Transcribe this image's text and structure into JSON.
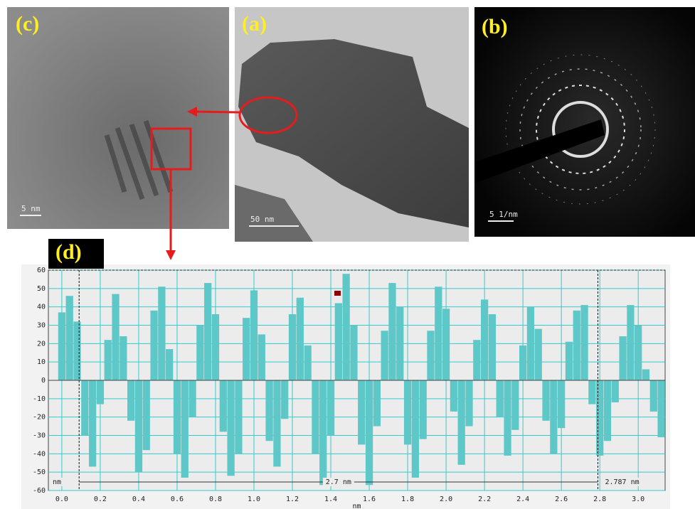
{
  "panels": [
    {
      "label": "(c)",
      "scale_bar": "5 nm"
    },
    {
      "label": "(a)",
      "scale_bar": "50 nm"
    },
    {
      "label": "(b)",
      "scale_bar": "5 1/nm"
    }
  ],
  "chart_data": {
    "type": "bar",
    "label": "(d)",
    "x_label": "nm",
    "annotations": [
      "nm",
      "2.7 nm",
      "2.787 nm"
    ],
    "cursors": [
      0.09,
      2.79
    ],
    "color": "#5ec8c8",
    "grid": true,
    "x": [
      0.0,
      0.04,
      0.08,
      0.12,
      0.16,
      0.2,
      0.24,
      0.28,
      0.32,
      0.36,
      0.4,
      0.44,
      0.48,
      0.52,
      0.56,
      0.6,
      0.64,
      0.68,
      0.72,
      0.76,
      0.8,
      0.84,
      0.88,
      0.92,
      0.96,
      1.0,
      1.04,
      1.08,
      1.12,
      1.16,
      1.2,
      1.24,
      1.28,
      1.32,
      1.36,
      1.4,
      1.44,
      1.48,
      1.52,
      1.56,
      1.6,
      1.64,
      1.68,
      1.72,
      1.76,
      1.8,
      1.84,
      1.88,
      1.92,
      1.96,
      2.0,
      2.04,
      2.08,
      2.12,
      2.16,
      2.2,
      2.24,
      2.28,
      2.32,
      2.36,
      2.4,
      2.44,
      2.48,
      2.52,
      2.56,
      2.6,
      2.64,
      2.68,
      2.72,
      2.76,
      2.8,
      2.84,
      2.88,
      2.92,
      2.96,
      3.0,
      3.04,
      3.08,
      3.12
    ],
    "values": [
      37,
      46,
      32,
      -30,
      -47,
      -13,
      22,
      47,
      24,
      -22,
      -50,
      -38,
      38,
      51,
      17,
      -40,
      -53,
      -20,
      30,
      53,
      36,
      -28,
      -52,
      -40,
      34,
      49,
      25,
      -33,
      -47,
      -21,
      36,
      45,
      19,
      -40,
      -57,
      -30,
      42,
      58,
      30,
      -35,
      -57,
      -25,
      27,
      53,
      40,
      -35,
      -53,
      -32,
      27,
      51,
      39,
      -17,
      -46,
      -25,
      22,
      44,
      36,
      -20,
      -41,
      -27,
      19,
      40,
      28,
      -22,
      -40,
      -26,
      21,
      38,
      41,
      -13,
      -41,
      -33,
      -12,
      24,
      41,
      30,
      6,
      -17,
      -31
    ],
    "xlim": [
      -0.07,
      3.14
    ],
    "ylim": [
      -60,
      60
    ],
    "xticks": [
      {
        "value": 0,
        "label": "0.0"
      },
      0.2,
      0.4,
      0.6,
      0.8,
      {
        "value": 1,
        "label": "1.0"
      },
      1.2,
      1.4,
      1.6,
      1.8,
      {
        "value": 2,
        "label": "2.0"
      },
      2.2,
      2.4,
      2.6,
      2.8,
      {
        "value": 3,
        "label": "3.0"
      }
    ],
    "yticks": [
      -60,
      -50,
      -40,
      -30,
      -20,
      -10,
      0,
      10,
      20,
      30,
      40,
      50,
      60
    ]
  }
}
